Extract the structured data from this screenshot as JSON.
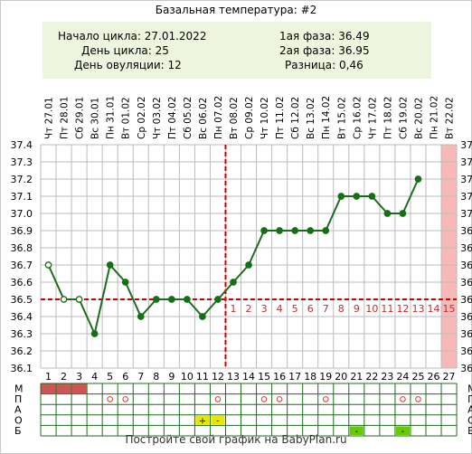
{
  "title": "Базальная температура: #2",
  "info": {
    "cycle_start": "Начало цикла: 27.01.2022",
    "cycle_day": "День цикла: 25",
    "ovulation_day": "День овуляции: 12",
    "phase1": "1ая фаза: 36.49",
    "phase2": "2ая фаза: 36.95",
    "difference": "Разница: 0,46"
  },
  "footer": "Постройте свой график на BabyPlan.ru",
  "chart_data": {
    "type": "line",
    "x": [
      1,
      2,
      3,
      4,
      5,
      6,
      7,
      8,
      9,
      10,
      11,
      12,
      13,
      14,
      15,
      16,
      17,
      18,
      19,
      20,
      21,
      22,
      23,
      24,
      25,
      26,
      27
    ],
    "x_labels": [
      "1",
      "2",
      "3",
      "4",
      "5",
      "6",
      "7",
      "8",
      "9",
      "10",
      "11",
      "12",
      "13",
      "14",
      "15",
      "16",
      "17",
      "18",
      "19",
      "20",
      "21",
      "22",
      "23",
      "24",
      "25",
      "26",
      "27"
    ],
    "dates": [
      "Чт 27.01",
      "Пт 28.01",
      "Сб 29.01",
      "Вс 30.01",
      "Пн 31.01",
      "Вт 01.02",
      "Ср 02.02",
      "Чт 03.02",
      "Пт 04.02",
      "Сб 05.02",
      "Вс 06.02",
      "Пн 07.02",
      "Вт 08.02",
      "Ср 09.02",
      "Чт 10.02",
      "Пт 11.02",
      "Сб 12.02",
      "Вс 13.02",
      "Пн 14.02",
      "Вт 15.02",
      "Ср 16.02",
      "Чт 17.02",
      "Пт 18.02",
      "Сб 19.02",
      "Вс 20.02",
      "Пн 21.02",
      "Вт 22.02"
    ],
    "series": [
      {
        "values": [
          36.7,
          36.5,
          36.5,
          36.3,
          36.7,
          36.6,
          36.4,
          36.5,
          36.5,
          36.5,
          36.4,
          36.5,
          36.6,
          36.7,
          36.9,
          36.9,
          36.9,
          36.9,
          36.9,
          37.1,
          37.1,
          37.1,
          37.0,
          37.0,
          37.2,
          null,
          null
        ]
      }
    ],
    "open_points": [
      1,
      2,
      3
    ],
    "y_ticks": [
      "36.1",
      "36.2",
      "36.3",
      "36.4",
      "36.5",
      "36.6",
      "36.7",
      "36.8",
      "36.9",
      "37.0",
      "37.1",
      "37.2",
      "37.3",
      "37.4"
    ],
    "ylim": [
      36.1,
      37.4
    ],
    "coverline": 36.5,
    "ovulation_day": 12,
    "phase2_labels": [
      "1",
      "2",
      "3",
      "4",
      "5",
      "6",
      "7",
      "8",
      "9",
      "10",
      "11",
      "12",
      "13",
      "14",
      "15"
    ],
    "phase2_start_day": 12,
    "predicted_period_day": 27,
    "grid": true,
    "colors": {
      "line": "#1e6b1e",
      "point": "#157015",
      "coverline": "#d40000",
      "ovulation_line": "#d40000",
      "phase_numbers": "#c03030",
      "period_band": "#f7b8b8",
      "grid": "#bbbbbb",
      "menstruation": "#cc5555",
      "marker_circle": "#e03030",
      "sex_marker": "#e6e600",
      "test_marker": "#66cc00"
    },
    "rows": [
      {
        "label": "М",
        "filled_days": [
          1,
          2,
          3
        ]
      },
      {
        "label": "П",
        "circle_days": [
          5,
          6,
          12,
          15,
          16,
          19,
          24,
          25
        ]
      },
      {
        "label": "А",
        "cells": []
      },
      {
        "label": "О",
        "marks": [
          {
            "day": 11,
            "text": "+"
          },
          {
            "day": 12,
            "text": "-"
          }
        ]
      },
      {
        "label": "Б",
        "marks": [
          {
            "day": 21,
            "text": "-"
          },
          {
            "day": 24,
            "text": "-"
          }
        ]
      }
    ],
    "row_labels_left": [
      "М",
      "П",
      "А",
      "О",
      "Б"
    ],
    "row_labels_right": [
      "М",
      "П",
      "А",
      "О",
      "Б"
    ]
  }
}
